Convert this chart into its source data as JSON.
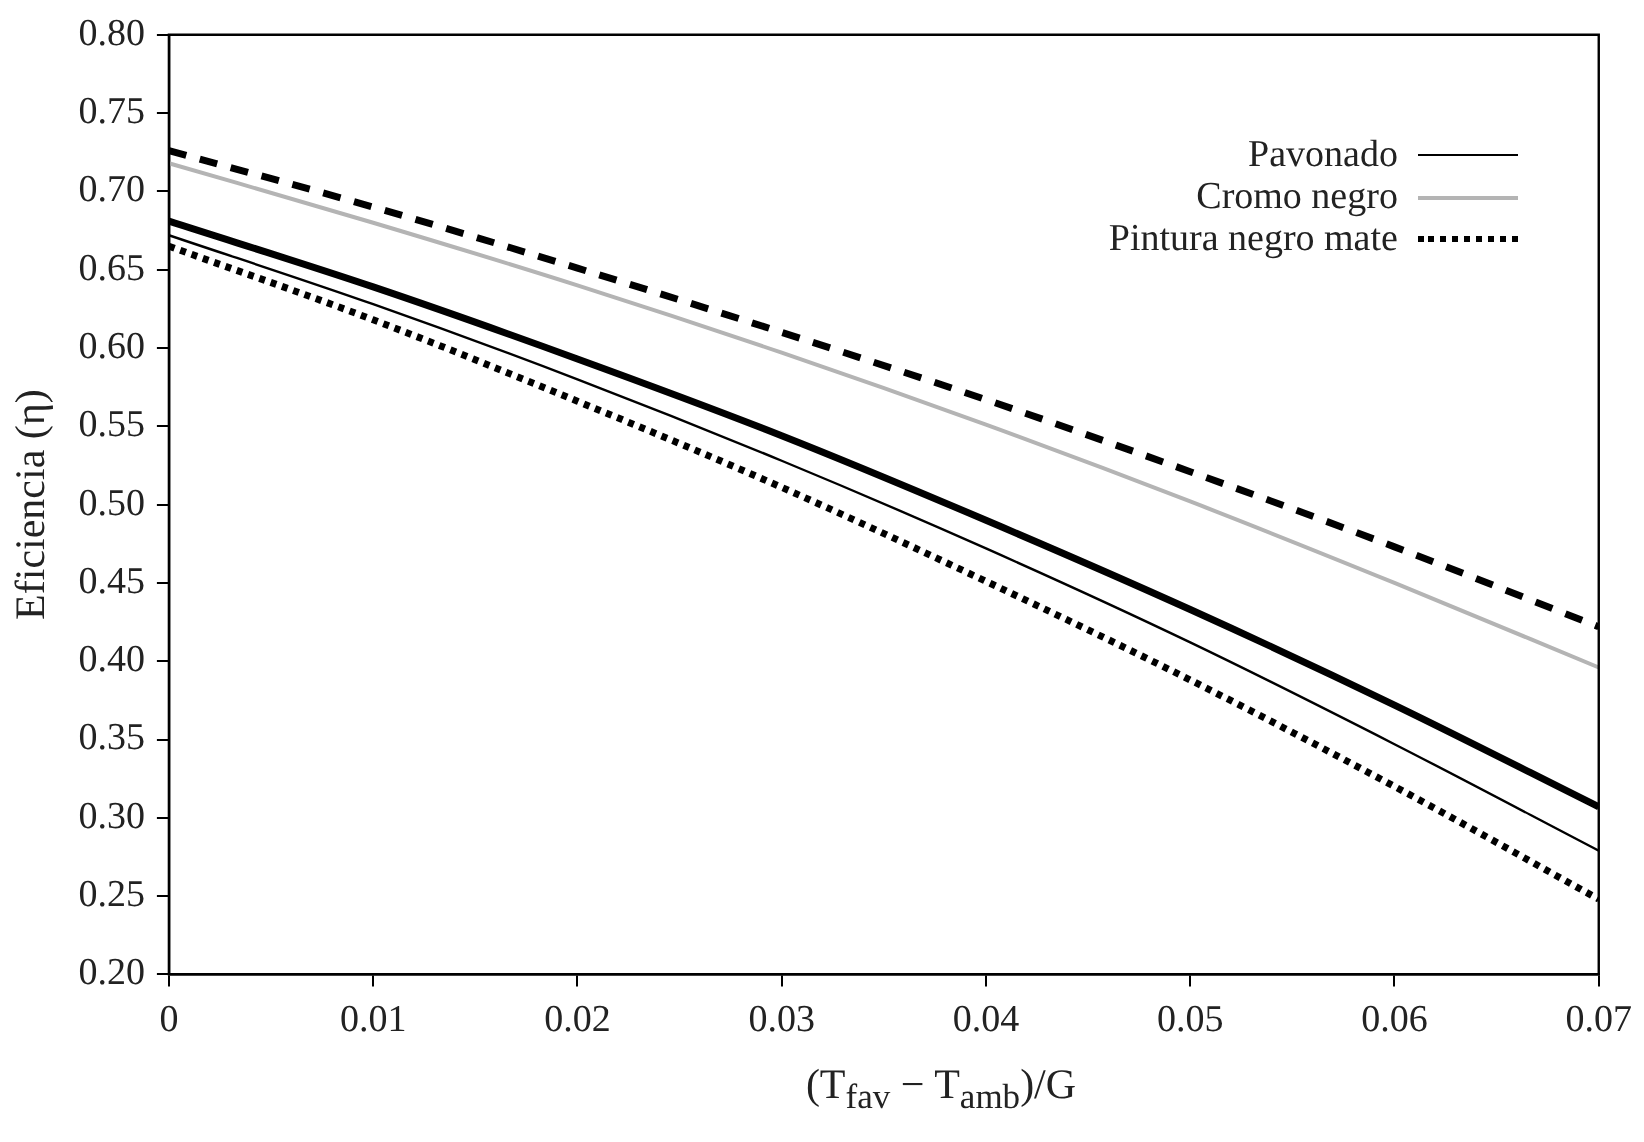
{
  "chart_data": {
    "type": "line",
    "xlabel": "(T$_{fav}$ − T$_{amb}$)/G",
    "ylabel": "Eficiencia (η)",
    "x": [
      0,
      0.01,
      0.02,
      0.03,
      0.04,
      0.05,
      0.06,
      0.07
    ],
    "series": [
      {
        "color": "#000000",
        "line_style": "dashed",
        "values": [
          0.726,
          0.69,
          0.651,
          0.61,
          0.567,
          0.521,
          0.473,
          0.422
        ]
      },
      {
        "color": "#000000",
        "line_style": "solid",
        "values": [
          0.681,
          0.639,
          0.593,
          0.544,
          0.49,
          0.433,
          0.372,
          0.307
        ]
      },
      {
        "name": "Pavonado",
        "color": "#000000",
        "line_style": "solid",
        "values": [
          0.672,
          0.628,
          0.58,
          0.528,
          0.472,
          0.412,
          0.347,
          0.279
        ]
      },
      {
        "name": "Cromo negro",
        "color": "#b4b4b4",
        "line_style": "solid",
        "values": [
          0.718,
          0.68,
          0.64,
          0.597,
          0.551,
          0.502,
          0.45,
          0.396
        ]
      },
      {
        "name": "Pintura negro mate",
        "color": "#000000",
        "line_style": "dotted",
        "values": [
          0.665,
          0.618,
          0.566,
          0.511,
          0.451,
          0.388,
          0.32,
          0.248
        ]
      }
    ],
    "xlim": [
      0,
      0.07
    ],
    "xticks": [
      0,
      0.01,
      0.02,
      0.03,
      0.04,
      0.05,
      0.06,
      0.07
    ],
    "ylim": [
      0.2,
      0.8
    ],
    "yticks": [
      {
        "value": 0.2,
        "label": "0.20"
      },
      {
        "value": 0.25,
        "label": "0.25"
      },
      {
        "value": 0.3,
        "label": "0.30"
      },
      {
        "value": 0.35,
        "label": "0.35"
      },
      {
        "value": 0.4,
        "label": "0.40"
      },
      {
        "value": 0.45,
        "label": "0.45"
      },
      {
        "value": 0.5,
        "label": "0.50"
      },
      {
        "value": 0.55,
        "label": "0.55"
      },
      {
        "value": 0.6,
        "label": "0.60"
      },
      {
        "value": 0.65,
        "label": "0.65"
      },
      {
        "value": 0.7,
        "label": "0.70"
      },
      {
        "value": 0.75,
        "label": "0.75"
      },
      {
        "value": 0.8,
        "label": "0.80"
      }
    ],
    "grid": false,
    "legend": "top right",
    "marker": "none"
  }
}
